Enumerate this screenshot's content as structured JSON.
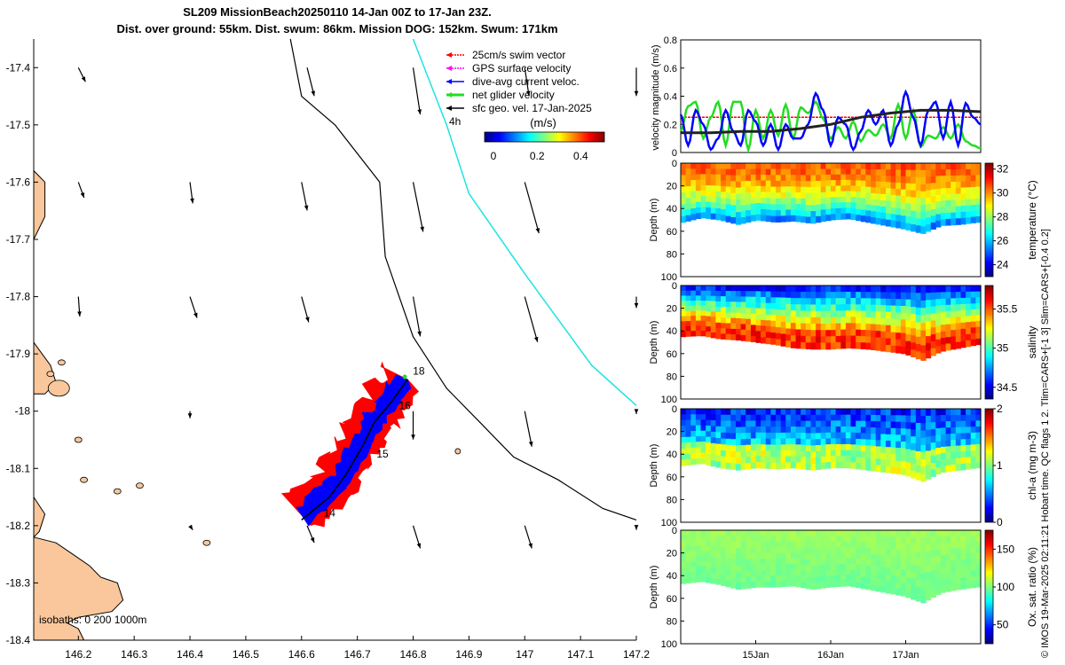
{
  "title": {
    "line1": "SL209 MissionBeach20250110 14-Jan 00Z to 17-Jan 23Z.",
    "line2": "Dist. over ground: 55km. Dist. swum: 86km. Mission DOG: 152km. Swum: 171km"
  },
  "side_text": "© IMOS 19-Mar-2025 02:11:21 Hobart time. QC flags 1  2. Tlim=CARS+[-1 3] Slim=CARS+[-0.4 0.2]",
  "colors": {
    "land": "#f9c79b",
    "track_cyan": "#1ee3e3",
    "red_swath": "#ff0000",
    "blue_swath": "#0000ff",
    "green_net": "#22dd22"
  },
  "chart_data": [
    {
      "type": "map",
      "name": "glider-track-map",
      "xlim": [
        146.12,
        147.2
      ],
      "ylim": [
        -18.4,
        -17.35
      ],
      "xticks": [
        "146.2",
        "146.3",
        "146.4",
        "146.5",
        "146.6",
        "146.7",
        "146.8",
        "146.9",
        "147",
        "147.1",
        "147.2"
      ],
      "xtick_values": [
        146.2,
        146.3,
        146.4,
        146.5,
        146.6,
        146.7,
        146.8,
        146.9,
        147.0,
        147.1,
        147.2
      ],
      "yticks": [
        "-17.4",
        "-17.5",
        "-17.6",
        "-17.7",
        "-17.8",
        "-17.9",
        "-18",
        "-18.1",
        "-18.2",
        "-18.3",
        "-18.4"
      ],
      "ytick_values": [
        -17.4,
        -17.5,
        -17.6,
        -17.7,
        -17.8,
        -17.9,
        -18.0,
        -18.1,
        -18.2,
        -18.3,
        -18.4
      ],
      "legend": [
        {
          "label": "25cm/s swim vector",
          "color": "#ff0000"
        },
        {
          "label": "GPS surface velocity",
          "color": "#ff00ff"
        },
        {
          "label": "dive-avg current veloc.",
          "color": "#0000ff"
        },
        {
          "label": "net glider velocity",
          "color": "#22dd22"
        },
        {
          "label": "sfc geo. vel. 17-Jan-2025",
          "color": "#000000"
        }
      ],
      "legend_extra": "4h",
      "colorbar": {
        "label": "(m/s)",
        "ticks": [
          "0",
          "0.2",
          "0.4"
        ],
        "range": [
          0,
          0.5
        ]
      },
      "isobaths_label": "isobaths: 0   200  1000m",
      "day_labels": [
        "14",
        "15",
        "16",
        "18"
      ],
      "isobath_200": [
        [
          146.8,
          -17.35
        ],
        [
          146.86,
          -17.5
        ],
        [
          146.9,
          -17.62
        ],
        [
          147.0,
          -17.76
        ],
        [
          147.06,
          -17.84
        ],
        [
          147.12,
          -17.92
        ],
        [
          147.2,
          -17.99
        ]
      ],
      "isobath_1000": [
        [
          146.58,
          -17.35
        ],
        [
          146.6,
          -17.45
        ],
        [
          146.66,
          -17.5
        ],
        [
          146.74,
          -17.6
        ],
        [
          146.75,
          -17.73
        ],
        [
          146.8,
          -17.87
        ],
        [
          146.86,
          -17.96
        ],
        [
          146.92,
          -18.02
        ],
        [
          146.98,
          -18.08
        ],
        [
          147.06,
          -18.12
        ],
        [
          147.14,
          -18.17
        ],
        [
          147.2,
          -18.19
        ]
      ],
      "track": [
        [
          146.6,
          -18.19
        ],
        [
          146.65,
          -18.15
        ],
        [
          146.68,
          -18.11
        ],
        [
          146.71,
          -18.06
        ],
        [
          146.73,
          -18.02
        ],
        [
          146.76,
          -17.985
        ],
        [
          146.79,
          -17.945
        ]
      ],
      "geo_vectors": [
        {
          "lon": 146.2,
          "lat": -17.4,
          "u": 0.05,
          "v": -0.1
        },
        {
          "lon": 146.61,
          "lat": -17.4,
          "u": 0.05,
          "v": -0.2
        },
        {
          "lon": 146.8,
          "lat": -17.4,
          "u": 0.05,
          "v": -0.33
        },
        {
          "lon": 147.0,
          "lat": -17.4,
          "u": 0.03,
          "v": -0.2
        },
        {
          "lon": 147.2,
          "lat": -17.4,
          "u": 0.0,
          "v": -0.2
        },
        {
          "lon": 146.2,
          "lat": -17.6,
          "u": 0.04,
          "v": -0.11
        },
        {
          "lon": 146.4,
          "lat": -17.6,
          "u": 0.02,
          "v": -0.15
        },
        {
          "lon": 146.6,
          "lat": -17.6,
          "u": 0.04,
          "v": -0.2
        },
        {
          "lon": 146.8,
          "lat": -17.6,
          "u": 0.07,
          "v": -0.35
        },
        {
          "lon": 147.0,
          "lat": -17.6,
          "u": 0.1,
          "v": -0.36
        },
        {
          "lon": 146.2,
          "lat": -17.8,
          "u": 0.01,
          "v": -0.14
        },
        {
          "lon": 146.4,
          "lat": -17.8,
          "u": 0.05,
          "v": -0.15
        },
        {
          "lon": 146.6,
          "lat": -17.8,
          "u": 0.05,
          "v": -0.18
        },
        {
          "lon": 146.8,
          "lat": -17.8,
          "u": 0.05,
          "v": -0.28
        },
        {
          "lon": 147.0,
          "lat": -17.8,
          "u": 0.09,
          "v": -0.32
        },
        {
          "lon": 147.2,
          "lat": -17.8,
          "u": 0.0,
          "v": -0.08
        },
        {
          "lon": 146.4,
          "lat": -18.0,
          "u": 0.0,
          "v": -0.05
        },
        {
          "lon": 146.8,
          "lat": -18.0,
          "u": 0.0,
          "v": -0.2
        },
        {
          "lon": 147.0,
          "lat": -18.0,
          "u": 0.05,
          "v": -0.25
        },
        {
          "lon": 147.2,
          "lat": -18.0,
          "u": 0.0,
          "v": -0.02
        },
        {
          "lon": 146.4,
          "lat": -18.2,
          "u": 0.02,
          "v": -0.03
        },
        {
          "lon": 146.61,
          "lat": -18.2,
          "u": 0.05,
          "v": -0.12
        },
        {
          "lon": 146.8,
          "lat": -18.2,
          "u": 0.05,
          "v": -0.16
        },
        {
          "lon": 147.0,
          "lat": -18.2,
          "u": 0.05,
          "v": -0.16
        },
        {
          "lon": 147.2,
          "lat": -18.2,
          "u": 0.0,
          "v": -0.03
        }
      ]
    },
    {
      "type": "line",
      "name": "velocity-magnitude",
      "ylabel": "velocity magnitude (m/s)",
      "ylim": [
        0,
        0.8
      ],
      "yticks": [
        "0",
        "0.2",
        "0.4",
        "0.6",
        "0.8"
      ],
      "ytick_values": [
        0,
        0.2,
        0.4,
        0.6,
        0.8
      ],
      "xlim": [
        14.0,
        18.0
      ],
      "series": [
        {
          "name": "swim",
          "color": "#ff0000",
          "x": [
            14.0,
            14.5,
            15.0,
            15.5,
            16.0,
            16.5,
            17.0,
            17.5,
            18.0
          ],
          "values": [
            0.25,
            0.25,
            0.25,
            0.25,
            0.25,
            0.25,
            0.25,
            0.25,
            0.25
          ]
        },
        {
          "name": "net",
          "color": "#22dd22",
          "x": [
            14.0,
            14.1,
            14.2,
            14.3,
            14.4,
            14.5,
            14.6,
            14.7,
            14.8,
            14.9,
            15.0,
            15.1,
            15.2,
            15.3,
            15.4,
            15.5,
            15.6,
            15.7,
            15.8,
            15.9,
            16.0,
            16.1,
            16.2,
            16.3,
            16.4,
            16.5,
            16.6,
            16.7,
            16.8,
            16.9,
            17.0,
            17.1,
            17.2,
            17.3,
            17.4,
            17.5,
            17.6,
            17.7,
            17.8,
            17.9,
            18.0
          ],
          "values": [
            0.15,
            0.33,
            0.36,
            0.1,
            0.25,
            0.36,
            0.05,
            0.36,
            0.36,
            0.02,
            0.3,
            0.1,
            0.3,
            0.12,
            0.34,
            0.1,
            0.32,
            0.28,
            0.36,
            0.24,
            0.1,
            0.18,
            0.1,
            0.22,
            0.08,
            0.16,
            0.12,
            0.2,
            0.1,
            0.34,
            0.1,
            0.3,
            0.04,
            0.12,
            0.1,
            0.18,
            0.1,
            0.2,
            0.08,
            0.05,
            0.03
          ]
        },
        {
          "name": "dive-avg",
          "color": "#0000ff",
          "x": [
            14.0,
            14.1,
            14.2,
            14.3,
            14.4,
            14.5,
            14.6,
            14.7,
            14.8,
            14.9,
            15.0,
            15.1,
            15.2,
            15.3,
            15.4,
            15.5,
            15.6,
            15.7,
            15.8,
            15.9,
            16.0,
            16.1,
            16.2,
            16.3,
            16.4,
            16.5,
            16.6,
            16.7,
            16.8,
            16.9,
            17.0,
            17.1,
            17.2,
            17.3,
            17.4,
            17.5,
            17.6,
            17.7,
            17.8,
            17.9,
            18.0
          ],
          "values": [
            0.27,
            0.05,
            0.3,
            0.2,
            0.02,
            0.1,
            0.3,
            0.15,
            0.05,
            0.3,
            0.22,
            0.05,
            0.2,
            0.02,
            0.2,
            0.1,
            0.1,
            0.2,
            0.42,
            0.3,
            0.05,
            0.25,
            0.2,
            0.02,
            0.15,
            0.3,
            0.2,
            0.3,
            0.05,
            0.2,
            0.43,
            0.25,
            0.05,
            0.3,
            0.36,
            0.1,
            0.36,
            0.05,
            0.35,
            0.25,
            0.2
          ]
        },
        {
          "name": "sfc geo",
          "color": "#222222",
          "x": [
            14.0,
            14.4,
            14.8,
            15.2,
            15.6,
            16.0,
            16.4,
            16.8,
            17.2,
            17.6,
            18.0
          ],
          "values": [
            0.14,
            0.14,
            0.15,
            0.15,
            0.17,
            0.2,
            0.25,
            0.28,
            0.3,
            0.3,
            0.29
          ]
        }
      ]
    },
    {
      "type": "heatmap",
      "name": "temperature-section",
      "ylabel": "Depth (m)",
      "clabel": "temperature (°C)",
      "yticks": [
        "0",
        "20",
        "40",
        "60",
        "80",
        "100"
      ],
      "ytick_values": [
        0,
        20,
        40,
        60,
        80,
        100
      ],
      "ylim": [
        0,
        100
      ],
      "cticks": [
        "24",
        "26",
        "28",
        "30",
        "32"
      ],
      "ctick_values": [
        24,
        26,
        28,
        30,
        32
      ],
      "crange": [
        23,
        32.5
      ],
      "xlim": [
        14.0,
        18.0
      ],
      "bottom_depth": [
        52,
        48,
        50,
        54,
        50,
        52,
        51,
        53,
        50,
        49,
        52,
        55,
        58,
        62,
        55,
        54,
        52
      ],
      "surface_value": 30.5,
      "bottom_value": 25.0
    },
    {
      "type": "heatmap",
      "name": "salinity-section",
      "ylabel": "Depth (m)",
      "clabel": "salinity",
      "yticks": [
        "0",
        "20",
        "40",
        "60",
        "80",
        "100"
      ],
      "ytick_values": [
        0,
        20,
        40,
        60,
        80,
        100
      ],
      "ylim": [
        0,
        100
      ],
      "cticks": [
        "34.5",
        "35",
        "35.5"
      ],
      "ctick_values": [
        34.5,
        35.0,
        35.5
      ],
      "crange": [
        34.35,
        35.8
      ],
      "xlim": [
        14.0,
        18.0
      ],
      "bottom_depth": [
        45,
        44,
        47,
        48,
        50,
        52,
        55,
        56,
        56,
        55,
        56,
        58,
        60,
        66,
        58,
        55,
        52
      ],
      "surface_value": 34.5,
      "bottom_value": 35.55
    },
    {
      "type": "heatmap",
      "name": "chlorophyll-section",
      "ylabel": "Depth (m)",
      "clabel": "chl-a (mg m-3)",
      "yticks": [
        "0",
        "20",
        "40",
        "60",
        "80",
        "100"
      ],
      "ytick_values": [
        0,
        20,
        40,
        60,
        80,
        100
      ],
      "ylim": [
        0,
        100
      ],
      "cticks": [
        "0",
        "1",
        "2"
      ],
      "ctick_values": [
        0,
        1,
        2
      ],
      "crange": [
        0,
        2
      ],
      "xlim": [
        14.0,
        18.0
      ],
      "bottom_depth": [
        50,
        48,
        52,
        54,
        52,
        53,
        52,
        54,
        52,
        52,
        54,
        56,
        58,
        64,
        56,
        54,
        52
      ],
      "surface_value": 0.3,
      "bottom_value": 0.9
    },
    {
      "type": "heatmap",
      "name": "oxygen-section",
      "ylabel": "Depth (m)",
      "clabel": "Ox. sat. ratio (%)",
      "yticks": [
        "0",
        "20",
        "40",
        "60",
        "80",
        "100"
      ],
      "ytick_values": [
        0,
        20,
        40,
        60,
        80,
        100
      ],
      "ylim": [
        0,
        100
      ],
      "cticks": [
        "50",
        "100",
        "150"
      ],
      "ctick_values": [
        50,
        100,
        150
      ],
      "crange": [
        25,
        175
      ],
      "xlim": [
        14.0,
        18.0
      ],
      "xticks": [
        "15Jan",
        "16Jan",
        "17Jan"
      ],
      "xtick_values": [
        15.0,
        16.0,
        17.0
      ],
      "bottom_depth": [
        47,
        45,
        48,
        52,
        50,
        50,
        49,
        52,
        50,
        49,
        52,
        55,
        58,
        64,
        55,
        52,
        50
      ],
      "surface_value": 105,
      "bottom_value": 100
    }
  ]
}
